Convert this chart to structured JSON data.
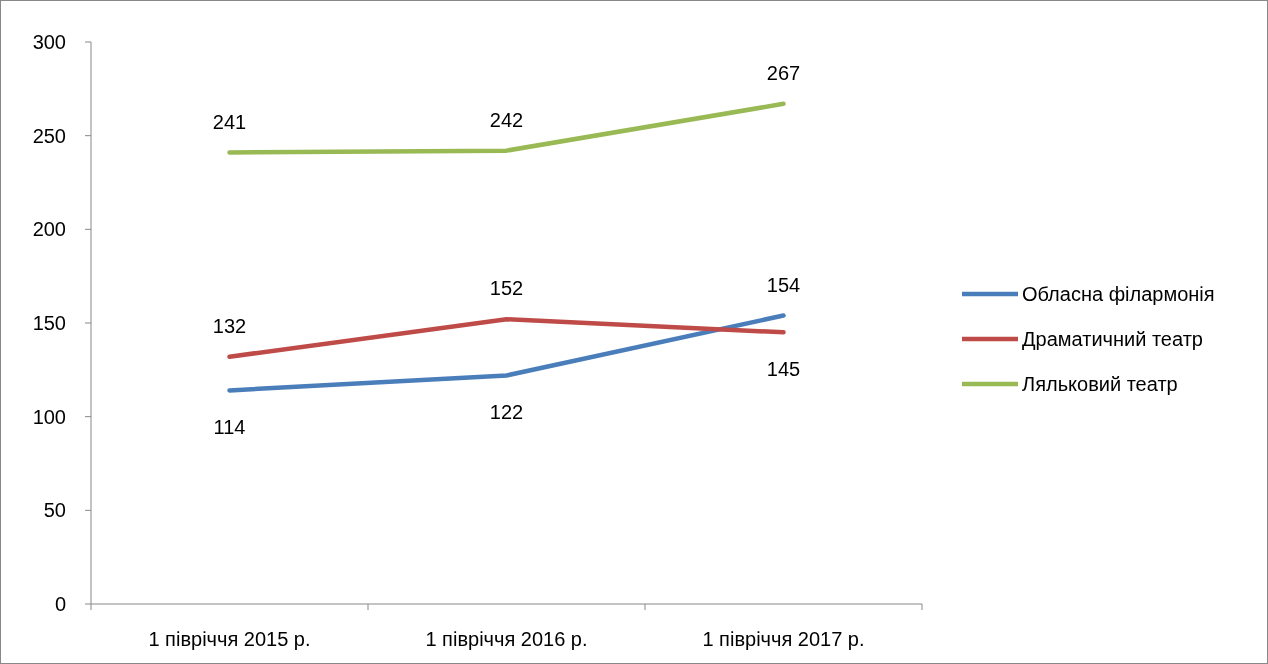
{
  "chart_data": {
    "type": "line",
    "categories": [
      "1 півріччя 2015 р.",
      "1 півріччя 2016 р.",
      "1 півріччя 2017 р."
    ],
    "series": [
      {
        "name": "Обласна філармонія",
        "color": "#4a7ebb",
        "values": [
          114,
          122,
          154
        ]
      },
      {
        "name": "Драматичний театр",
        "color": "#be4b48",
        "values": [
          132,
          152,
          145
        ]
      },
      {
        "name": "Ляльковий театр",
        "color": "#98b954",
        "values": [
          241,
          242,
          267
        ]
      }
    ],
    "ylim": [
      0,
      300
    ],
    "yticks": [
      0,
      50,
      100,
      150,
      200,
      250,
      300
    ],
    "data_labels": true,
    "legend": "right",
    "grid": false,
    "marker": "none",
    "line_style": "solid"
  }
}
